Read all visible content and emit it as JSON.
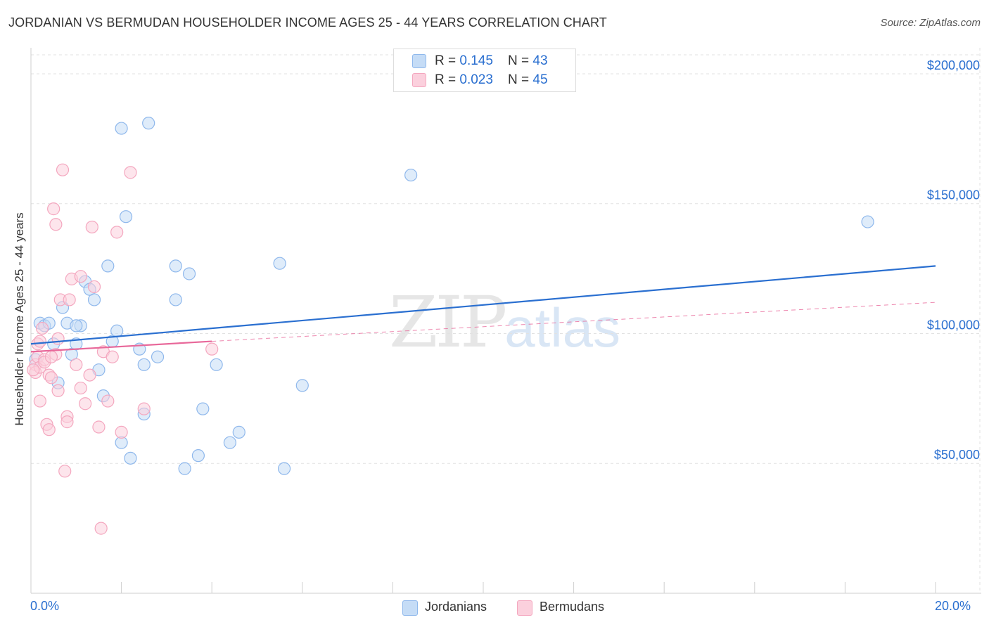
{
  "title": "JORDANIAN VS BERMUDAN HOUSEHOLDER INCOME AGES 25 - 44 YEARS CORRELATION CHART",
  "source": "Source: ZipAtlas.com",
  "watermark": {
    "zip": "ZIP",
    "atlas": "atlas"
  },
  "colors": {
    "jordanians": "#8fb8ec",
    "bermudans": "#f4a7bf",
    "jordanians_line": "#2a6fd0",
    "bermudans_line": "#e8689a",
    "accent_text": "#2a6fd0"
  },
  "legend": {
    "rows": [
      {
        "r_label": "R = ",
        "r_value": "0.145",
        "n_label": "N = ",
        "n_value": "43"
      },
      {
        "r_label": "R = ",
        "r_value": "0.023",
        "n_label": "N = ",
        "n_value": "45"
      }
    ]
  },
  "bottom_legend": [
    "Jordanians",
    "Bermudans"
  ],
  "chart_data": {
    "type": "scatter",
    "title": "JORDANIAN VS BERMUDAN HOUSEHOLDER INCOME AGES 25 - 44 YEARS CORRELATION CHART",
    "xlabel": "",
    "ylabel": "Householder Income Ages 25 - 44 years",
    "xlim": [
      0,
      20
    ],
    "ylim": [
      0,
      210000
    ],
    "x_tick_labels": [
      "0.0%",
      "20.0%"
    ],
    "y_ticks": [
      50000,
      100000,
      150000,
      200000
    ],
    "y_tick_labels": [
      "$50,000",
      "$100,000",
      "$150,000",
      "$200,000"
    ],
    "grid": true,
    "series": [
      {
        "name": "Jordanians",
        "color": "#8fb8ec",
        "trend": {
          "x": [
            0,
            20
          ],
          "y": [
            96000,
            126000
          ],
          "style": "solid"
        },
        "points": [
          [
            0.2,
            104000
          ],
          [
            0.3,
            103000
          ],
          [
            0.4,
            104000
          ],
          [
            0.5,
            96000
          ],
          [
            0.7,
            110000
          ],
          [
            0.8,
            104000
          ],
          [
            0.9,
            92000
          ],
          [
            1.1,
            103000
          ],
          [
            1.0,
            103000
          ],
          [
            1.2,
            120000
          ],
          [
            1.3,
            117000
          ],
          [
            1.4,
            113000
          ],
          [
            1.5,
            86000
          ],
          [
            1.6,
            76000
          ],
          [
            1.7,
            126000
          ],
          [
            1.8,
            97000
          ],
          [
            1.9,
            101000
          ],
          [
            2.0,
            58000
          ],
          [
            2.0,
            179000
          ],
          [
            2.1,
            145000
          ],
          [
            2.2,
            52000
          ],
          [
            2.4,
            94000
          ],
          [
            2.5,
            69000
          ],
          [
            2.5,
            88000
          ],
          [
            2.6,
            181000
          ],
          [
            2.8,
            91000
          ],
          [
            3.2,
            113000
          ],
          [
            3.2,
            126000
          ],
          [
            3.4,
            48000
          ],
          [
            3.5,
            123000
          ],
          [
            3.7,
            53000
          ],
          [
            3.8,
            71000
          ],
          [
            4.1,
            88000
          ],
          [
            4.4,
            58000
          ],
          [
            4.6,
            62000
          ],
          [
            5.5,
            127000
          ],
          [
            5.6,
            48000
          ],
          [
            6.0,
            80000
          ],
          [
            8.4,
            161000
          ],
          [
            18.5,
            143000
          ],
          [
            0.6,
            81000
          ],
          [
            0.1,
            90000
          ],
          [
            1.0,
            96000
          ]
        ]
      },
      {
        "name": "Bermudans",
        "color": "#f4a7bf",
        "trend": {
          "x": [
            0,
            4
          ],
          "y": [
            93000,
            97000
          ],
          "style": "solid",
          "dashed_extension": {
            "x": [
              4,
              20
            ],
            "y": [
              97000,
              112000
            ]
          }
        },
        "points": [
          [
            0.1,
            88000
          ],
          [
            0.1,
            85000
          ],
          [
            0.15,
            91000
          ],
          [
            0.2,
            87000
          ],
          [
            0.2,
            74000
          ],
          [
            0.25,
            102000
          ],
          [
            0.3,
            90000
          ],
          [
            0.35,
            65000
          ],
          [
            0.4,
            63000
          ],
          [
            0.4,
            84000
          ],
          [
            0.45,
            83000
          ],
          [
            0.5,
            148000
          ],
          [
            0.55,
            142000
          ],
          [
            0.55,
            92000
          ],
          [
            0.6,
            78000
          ],
          [
            0.6,
            98000
          ],
          [
            0.65,
            113000
          ],
          [
            0.7,
            163000
          ],
          [
            0.75,
            47000
          ],
          [
            0.8,
            68000
          ],
          [
            0.8,
            66000
          ],
          [
            0.85,
            113000
          ],
          [
            0.9,
            121000
          ],
          [
            1.0,
            88000
          ],
          [
            1.1,
            79000
          ],
          [
            1.2,
            73000
          ],
          [
            1.3,
            84000
          ],
          [
            1.35,
            141000
          ],
          [
            1.4,
            118000
          ],
          [
            1.5,
            64000
          ],
          [
            1.55,
            25000
          ],
          [
            1.6,
            93000
          ],
          [
            1.7,
            74000
          ],
          [
            1.8,
            91000
          ],
          [
            1.9,
            139000
          ],
          [
            2.0,
            62000
          ],
          [
            2.2,
            162000
          ],
          [
            2.5,
            71000
          ],
          [
            4.0,
            94000
          ],
          [
            0.05,
            86000
          ],
          [
            0.3,
            89000
          ],
          [
            0.45,
            91000
          ],
          [
            1.1,
            122000
          ],
          [
            0.15,
            96000
          ],
          [
            0.2,
            97000
          ]
        ]
      }
    ]
  }
}
